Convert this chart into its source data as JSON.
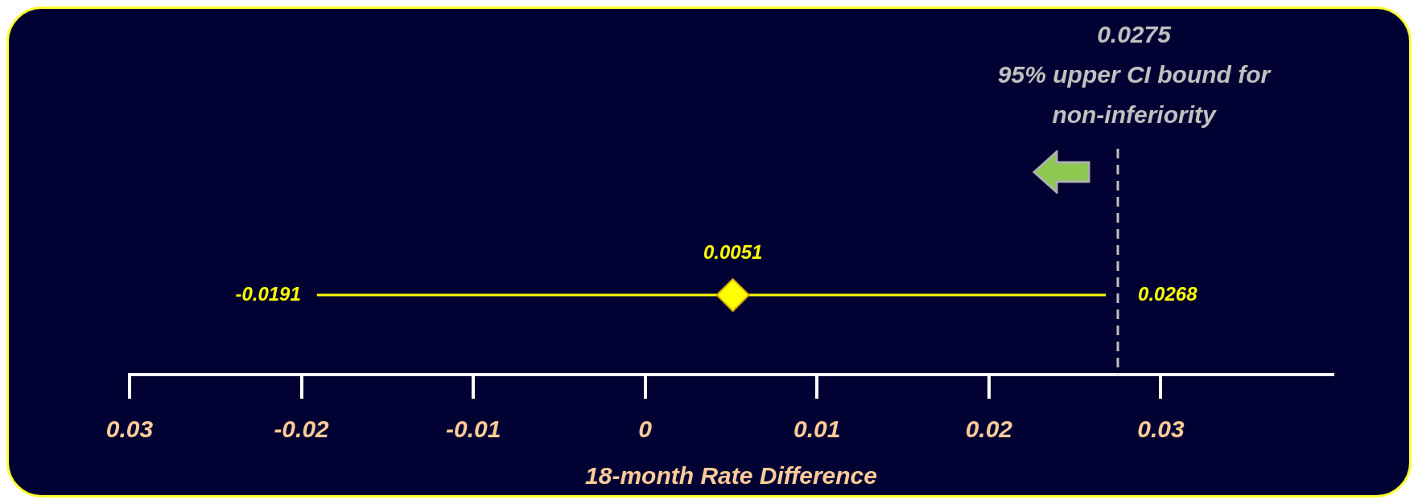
{
  "chart_data": {
    "type": "scatter",
    "orientation": "horizontal",
    "categories": [
      null
    ],
    "values": [
      0.0051
    ],
    "color": "#ffff00",
    "marker": "diamond",
    "errors": [
      [
        -0.0191,
        0.0268
      ]
    ],
    "value_labels": [
      "0.0051"
    ],
    "xlabel": "18-month Rate Difference",
    "xlim": [
      -0.03,
      0.04
    ],
    "xticks": [
      {
        "value": -0.03,
        "label": "0.03"
      },
      -0.02,
      -0.01,
      0,
      0.01,
      0.02,
      0.03
    ],
    "ref_lines": [
      {
        "axis": "x",
        "value": 0.0275,
        "label": "0.0275\n95% upper CI bound for non-inferiority",
        "color": "#c0c0c0",
        "line_style": "dashed"
      }
    ],
    "annotations": [
      {
        "text": "-0.0191",
        "x": -0.0191
      },
      {
        "text": "0.0268",
        "x": 0.0268
      }
    ],
    "legend": false
  }
}
